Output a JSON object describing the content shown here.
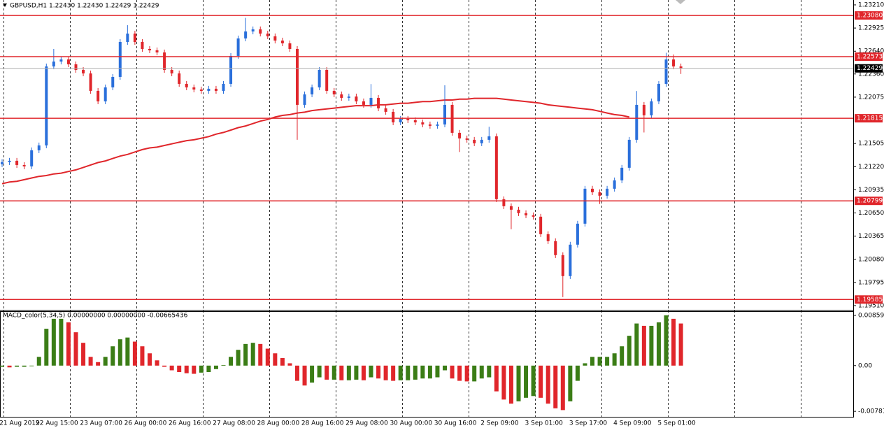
{
  "header": {
    "title": "GBPUSD,H1  1.22430 1.22430 1.22429 1.22429"
  },
  "chart_data": [
    {
      "type": "candlestick",
      "categories": [
        null,
        null,
        "21 Aug 2019",
        null,
        null,
        null,
        null,
        null,
        "22 Aug 15:00",
        null,
        null,
        null,
        null,
        null,
        "23 Aug 07:00",
        null,
        null,
        null,
        null,
        null,
        "26 Aug 00:00",
        null,
        null,
        null,
        null,
        null,
        "26 Aug 16:00",
        null,
        null,
        null,
        null,
        null,
        "27 Aug 08:00",
        null,
        null,
        null,
        null,
        null,
        "28 Aug 00:00",
        null,
        null,
        null,
        null,
        null,
        "28 Aug 16:00",
        null,
        null,
        null,
        null,
        null,
        "29 Aug 08:00",
        null,
        null,
        null,
        null,
        null,
        "30 Aug 00:00",
        null,
        null,
        null,
        null,
        null,
        "30 Aug 16:00",
        null,
        null,
        null,
        null,
        null,
        "2 Sep 09:00",
        null,
        null,
        null,
        null,
        null,
        "3 Sep 01:00",
        null,
        null,
        null,
        null,
        null,
        "3 Sep 17:00",
        null,
        null,
        null,
        null,
        null,
        "4 Sep 09:00",
        null,
        null,
        null,
        null,
        null,
        "5 Sep 01:00"
      ],
      "open": [
        1.2125,
        1.21275,
        1.21292,
        1.2124,
        1.21223,
        1.21421,
        1.21481,
        1.22453,
        1.22513,
        1.22539,
        1.22479,
        1.2241,
        1.22367,
        1.22152,
        1.22023,
        1.22195,
        1.22324,
        1.22754,
        1.22857,
        1.22754,
        1.22668,
        1.22651,
        1.22625,
        1.2241,
        1.22367,
        1.22238,
        1.22195,
        1.22169,
        1.22152,
        1.22178,
        1.22152,
        1.22238,
        1.22582,
        1.22797,
        1.22883,
        1.22909,
        1.22857,
        1.22823,
        1.22771,
        1.22737,
        1.22668,
        1.2198,
        1.22109,
        1.22195,
        1.2241,
        1.22152,
        1.22109,
        1.22066,
        1.22083,
        1.22023,
        1.2198,
        1.22066,
        1.21937,
        1.21894,
        1.21765,
        1.21808,
        1.21791,
        1.21765,
        1.21739,
        1.21722,
        1.21739,
        1.2198,
        1.21636,
        1.21567,
        1.2155,
        1.21507,
        1.2155,
        1.21593,
        1.20819,
        1.20733,
        1.2069,
        1.20647,
        1.20621,
        1.20604,
        1.20389,
        1.20303,
        1.20131,
        1.19873,
        1.2026,
        1.20518,
        1.20948,
        1.20905,
        1.20862,
        1.20948,
        1.21051,
        1.21206,
        1.2155,
        1.2198,
        1.21851,
        1.22023,
        1.22238,
        1.22539,
        1.22453
      ],
      "high": [
        1.2131,
        1.21327,
        1.21327,
        1.21275,
        1.21456,
        1.21516,
        1.22488,
        1.22668,
        1.22574,
        1.22574,
        1.22514,
        1.22445,
        1.22402,
        1.22187,
        1.2223,
        1.22359,
        1.22789,
        1.2296,
        1.22892,
        1.22789,
        1.22703,
        1.22686,
        1.2266,
        1.22445,
        1.22402,
        1.22273,
        1.2223,
        1.22204,
        1.22213,
        1.22213,
        1.22273,
        1.22617,
        1.22832,
        1.2305,
        1.22944,
        1.22944,
        1.22892,
        1.22858,
        1.22806,
        1.22772,
        1.22703,
        1.22144,
        1.2223,
        1.22445,
        1.22445,
        1.22187,
        1.22144,
        1.22118,
        1.22118,
        1.22058,
        1.22235,
        1.22101,
        1.21972,
        1.21929,
        1.21843,
        1.21843,
        1.21826,
        1.218,
        1.21774,
        1.21774,
        1.22221,
        1.22015,
        1.21671,
        1.21602,
        1.21585,
        1.21585,
        1.2171,
        1.21628,
        1.20854,
        1.20768,
        1.20725,
        1.20682,
        1.20656,
        1.20639,
        1.20424,
        1.20338,
        1.20166,
        1.20295,
        1.20553,
        1.20983,
        1.20983,
        1.2094,
        1.20983,
        1.21086,
        1.21241,
        1.21585,
        1.2215,
        1.22015,
        1.22058,
        1.22273,
        1.2262,
        1.226,
        1.22488
      ],
      "low": [
        1.21215,
        1.2124,
        1.21205,
        1.21188,
        1.21188,
        1.21386,
        1.21446,
        1.22418,
        1.22478,
        1.22444,
        1.22375,
        1.22332,
        1.22117,
        1.21988,
        1.21988,
        1.2216,
        1.22289,
        1.22719,
        1.22719,
        1.22633,
        1.22616,
        1.2259,
        1.22375,
        1.22332,
        1.22203,
        1.2216,
        1.22134,
        1.22117,
        1.22117,
        1.22117,
        1.22117,
        1.22203,
        1.22547,
        1.22762,
        1.22848,
        1.22822,
        1.22788,
        1.22736,
        1.22702,
        1.22633,
        1.2155,
        1.21945,
        1.22074,
        1.2216,
        1.22117,
        1.22074,
        1.22031,
        1.22031,
        1.21988,
        1.21945,
        1.21945,
        1.21902,
        1.21859,
        1.2173,
        1.2173,
        1.21756,
        1.2173,
        1.21704,
        1.21687,
        1.21687,
        1.21704,
        1.21601,
        1.214,
        1.21515,
        1.21472,
        1.21472,
        1.21515,
        1.20784,
        1.20698,
        1.2045,
        1.20612,
        1.20586,
        1.20569,
        1.20354,
        1.20268,
        1.20096,
        1.19615,
        1.19838,
        1.20225,
        1.20483,
        1.2087,
        1.2076,
        1.20827,
        1.20913,
        1.21016,
        1.21171,
        1.21515,
        1.2164,
        1.21816,
        1.21988,
        1.22203,
        1.22418,
        1.2236
      ],
      "close": [
        1.21275,
        1.21292,
        1.2124,
        1.21223,
        1.21421,
        1.21481,
        1.22453,
        1.22513,
        1.22539,
        1.22479,
        1.2241,
        1.22367,
        1.22152,
        1.22023,
        1.22195,
        1.22324,
        1.22754,
        1.22857,
        1.22754,
        1.22668,
        1.22651,
        1.22625,
        1.2241,
        1.22367,
        1.22238,
        1.22195,
        1.22169,
        1.22152,
        1.22178,
        1.22152,
        1.22238,
        1.22582,
        1.22797,
        1.22883,
        1.22909,
        1.22857,
        1.22823,
        1.22771,
        1.22737,
        1.22668,
        1.2198,
        1.22109,
        1.22195,
        1.2241,
        1.22152,
        1.22109,
        1.22066,
        1.22083,
        1.22023,
        1.2198,
        1.22066,
        1.21937,
        1.21894,
        1.21765,
        1.21808,
        1.21791,
        1.21765,
        1.21739,
        1.21722,
        1.21739,
        1.2198,
        1.21636,
        1.21567,
        1.2155,
        1.21507,
        1.2155,
        1.21593,
        1.20819,
        1.20733,
        1.2069,
        1.20647,
        1.20621,
        1.20604,
        1.20389,
        1.20303,
        1.20131,
        1.19873,
        1.2026,
        1.20518,
        1.20948,
        1.20905,
        1.20862,
        1.20948,
        1.21051,
        1.21206,
        1.2155,
        1.2198,
        1.21851,
        1.22023,
        1.22238,
        1.22539,
        1.22453,
        1.22429
      ],
      "up_color": "#2a6fdb",
      "down_color": "#e0262b",
      "series": [
        {
          "color": "#e0262b",
          "values": [
            1.2101,
            1.2103,
            1.2104,
            1.2106,
            1.2108,
            1.211,
            1.2111,
            1.2113,
            1.2114,
            1.2116,
            1.2118,
            1.2121,
            1.2124,
            1.2127,
            1.2129,
            1.2132,
            1.2135,
            1.2137,
            1.214,
            1.2143,
            1.2145,
            1.2146,
            1.2148,
            1.215,
            1.2152,
            1.2154,
            1.2155,
            1.2157,
            1.2159,
            1.2162,
            1.2164,
            1.2167,
            1.217,
            1.2172,
            1.2175,
            1.2178,
            1.218,
            1.2183,
            1.2185,
            1.2186,
            1.2188,
            1.2189,
            1.2191,
            1.2192,
            1.2193,
            1.2194,
            1.2195,
            1.2196,
            1.2197,
            1.2197,
            1.2197,
            1.2198,
            1.2198,
            1.2199,
            1.22,
            1.22,
            1.2201,
            1.2202,
            1.2202,
            1.2203,
            1.2204,
            1.2204,
            1.2205,
            1.2205,
            1.2206,
            1.2206,
            1.2206,
            1.2206,
            1.2205,
            1.2204,
            1.2203,
            1.2202,
            1.2201,
            1.22,
            1.2198,
            1.2197,
            1.2196,
            1.2195,
            1.2194,
            1.2193,
            1.2192,
            1.219,
            1.2188,
            1.2186,
            1.2185,
            1.2183,
            null,
            null,
            null,
            null,
            null,
            null,
            null
          ]
        }
      ],
      "levels": [
        {
          "value": 1.2308,
          "label": "1.23080"
        },
        {
          "value": 1.22573,
          "label": "1.22573"
        },
        {
          "value": 1.21815,
          "label": "1.21815"
        },
        {
          "value": 1.20799,
          "label": "1.20799"
        },
        {
          "value": 1.19585,
          "label": "1.19585"
        }
      ],
      "level_color": "#e0262b",
      "last_price": {
        "value": 1.22429,
        "label": "1.22429"
      },
      "ylim": [
        1.19467,
        1.2327
      ],
      "yticks": [
        {
          "value": 1.2321,
          "label": "1.23210"
        },
        {
          "value": 1.22925,
          "label": "1.22925"
        },
        {
          "value": 1.2264,
          "label": "1.22640"
        },
        {
          "value": 1.2236,
          "label": "1.22360"
        },
        {
          "value": 1.22075,
          "label": "1.22075"
        },
        {
          "value": 1.21505,
          "label": "1.21505"
        },
        {
          "value": 1.2122,
          "label": "1.21220"
        },
        {
          "value": 1.20935,
          "label": "1.20935"
        },
        {
          "value": 1.2065,
          "label": "1.20650"
        },
        {
          "value": 1.20365,
          "label": "1.20365"
        },
        {
          "value": 1.2008,
          "label": "1.20080"
        },
        {
          "value": 1.19795,
          "label": "1.19795"
        },
        {
          "value": 1.1951,
          "label": "1.19510"
        }
      ],
      "grid": true
    },
    {
      "type": "bar",
      "title": "MACD_color(5,34,5) 0.00000000 0.00000000 -0.00665436",
      "values": [
        -0.0002,
        -0.0003,
        -0.0002,
        -0.0002,
        -0.0001,
        0.0015,
        0.0063,
        0.008,
        0.008,
        0.0074,
        0.0057,
        0.0039,
        0.0015,
        0.0006,
        0.0015,
        0.0033,
        0.0045,
        0.0048,
        0.0041,
        0.0033,
        0.0021,
        0.0009,
        -0.0002,
        -0.0008,
        -0.0011,
        -0.0013,
        -0.0014,
        -0.0012,
        -0.0011,
        -0.0006,
        0.0001,
        0.0015,
        0.0027,
        0.0037,
        0.0039,
        0.0037,
        0.0029,
        0.0021,
        0.0013,
        0.0004,
        -0.0026,
        -0.0034,
        -0.0029,
        -0.002,
        -0.0024,
        -0.0024,
        -0.0025,
        -0.0025,
        -0.0024,
        -0.0025,
        -0.002,
        -0.0022,
        -0.0025,
        -0.0026,
        -0.0025,
        -0.0025,
        -0.0024,
        -0.0022,
        -0.0022,
        -0.002,
        -0.0008,
        -0.0022,
        -0.0026,
        -0.0027,
        -0.0027,
        -0.0022,
        -0.002,
        -0.0044,
        -0.0058,
        -0.0065,
        -0.0061,
        -0.0055,
        -0.0052,
        -0.0055,
        -0.0065,
        -0.0073,
        -0.0076,
        -0.0061,
        -0.0026,
        0.0004,
        0.0015,
        0.0015,
        0.0015,
        0.0021,
        0.0033,
        0.0051,
        0.0072,
        0.0068,
        0.0068,
        0.0074,
        0.0086,
        0.008,
        0.0072
      ],
      "up_color": "#3b7d16",
      "down_color": "#e0262b",
      "ylim": [
        -0.00875,
        0.00918
      ],
      "yticks": [
        {
          "value": 0.00859,
          "label": "0.00859"
        },
        {
          "value": 0,
          "label": "0.00"
        },
        {
          "value": -0.00781,
          "label": "-0.00781"
        }
      ]
    }
  ]
}
